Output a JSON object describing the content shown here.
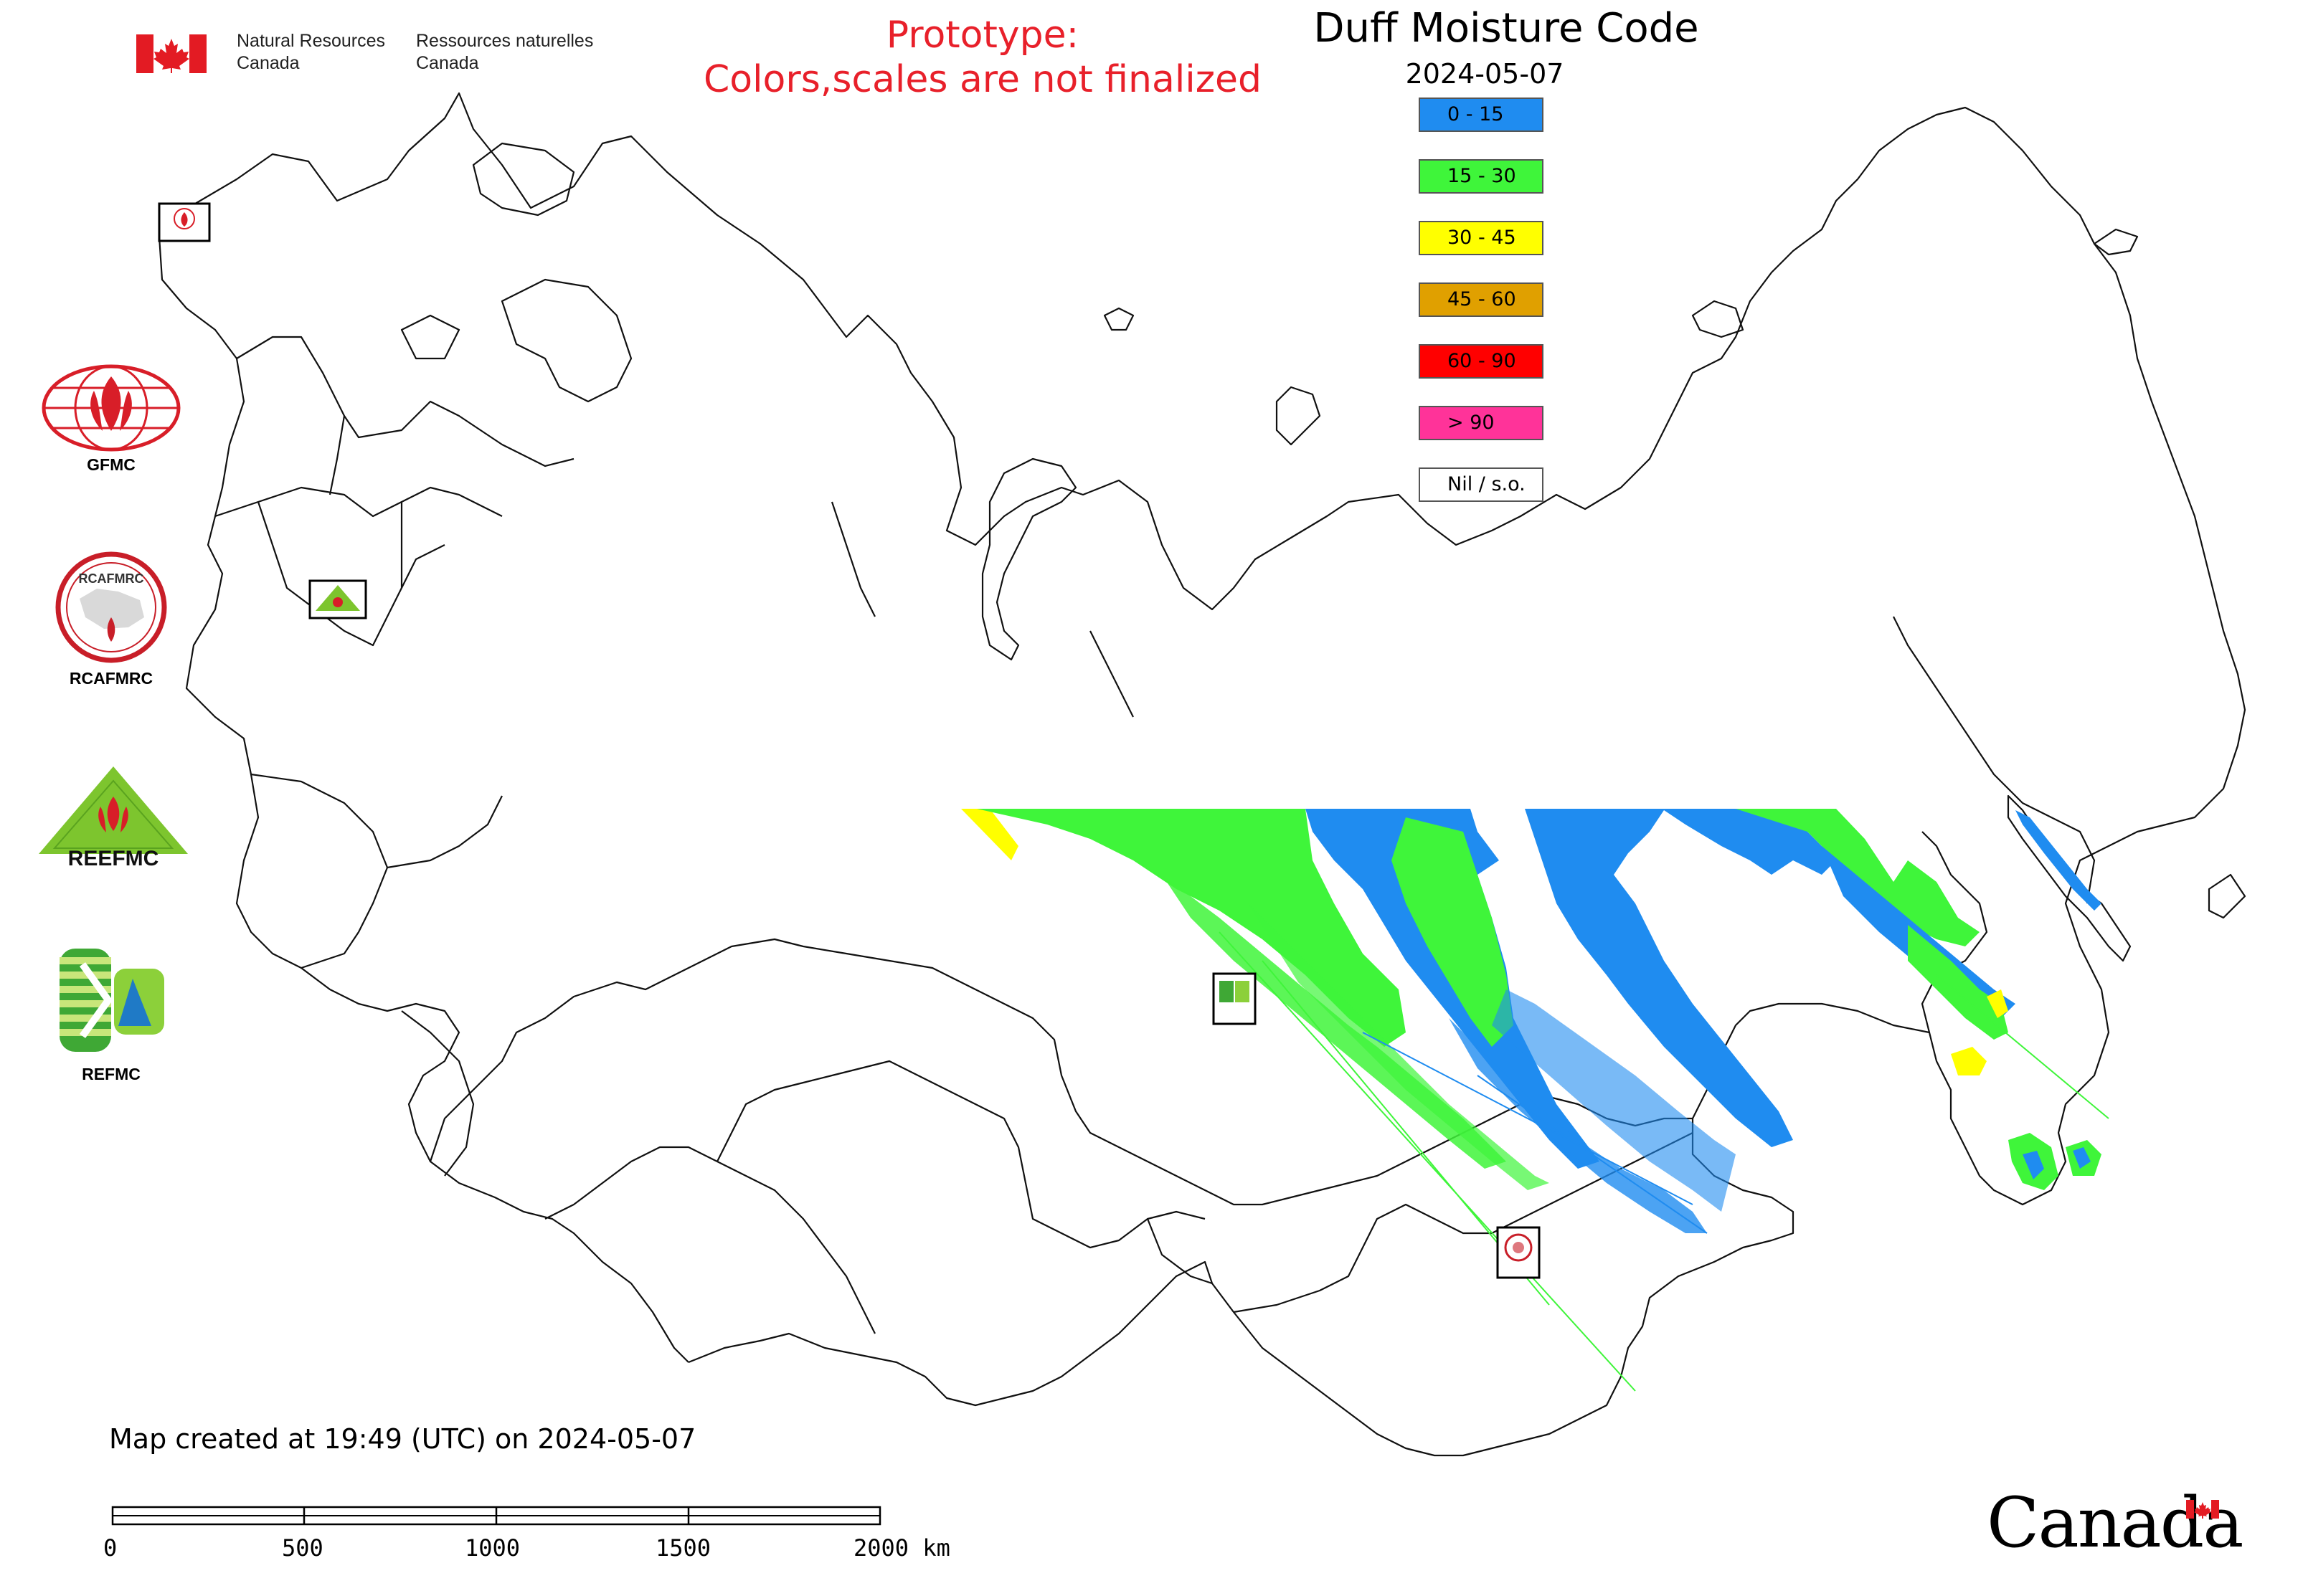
{
  "header": {
    "agency_en_line1": "Natural Resources",
    "agency_en_line2": "Canada",
    "agency_fr_line1": "Ressources naturelles",
    "agency_fr_line2": "Canada",
    "prototype_line1": "Prototype:",
    "prototype_line2": "Colors,scales are not finalized"
  },
  "map": {
    "title": "Duff Moisture Code",
    "date": "2024-05-07",
    "created_note": "Map created at 19:49 (UTC) on 2024-05-07"
  },
  "legend": [
    {
      "label": "0 - 15",
      "color": "#1f8cf0"
    },
    {
      "label": "15 - 30",
      "color": "#3ff53a"
    },
    {
      "label": "30 - 45",
      "color": "#ffff00"
    },
    {
      "label": "45 - 60",
      "color": "#e0a000"
    },
    {
      "label": "60 - 90",
      "color": "#ff0000"
    },
    {
      "label": "> 90",
      "color": "#ff3399"
    },
    {
      "label": "Nil / s.o.",
      "color": "#ffffff"
    }
  ],
  "organizations": {
    "gfmc": "GFMC",
    "rcafmrc": "RCAFMRC",
    "reefmc_logo_text": "REEFMC",
    "refmc": "REFMC",
    "rcafmrc_logo_text": "RCAFMRC"
  },
  "scale_bar": {
    "labels": [
      "0",
      "500",
      "1000",
      "1500",
      "2000 km"
    ]
  },
  "footer": {
    "wordmark": "Canada"
  }
}
